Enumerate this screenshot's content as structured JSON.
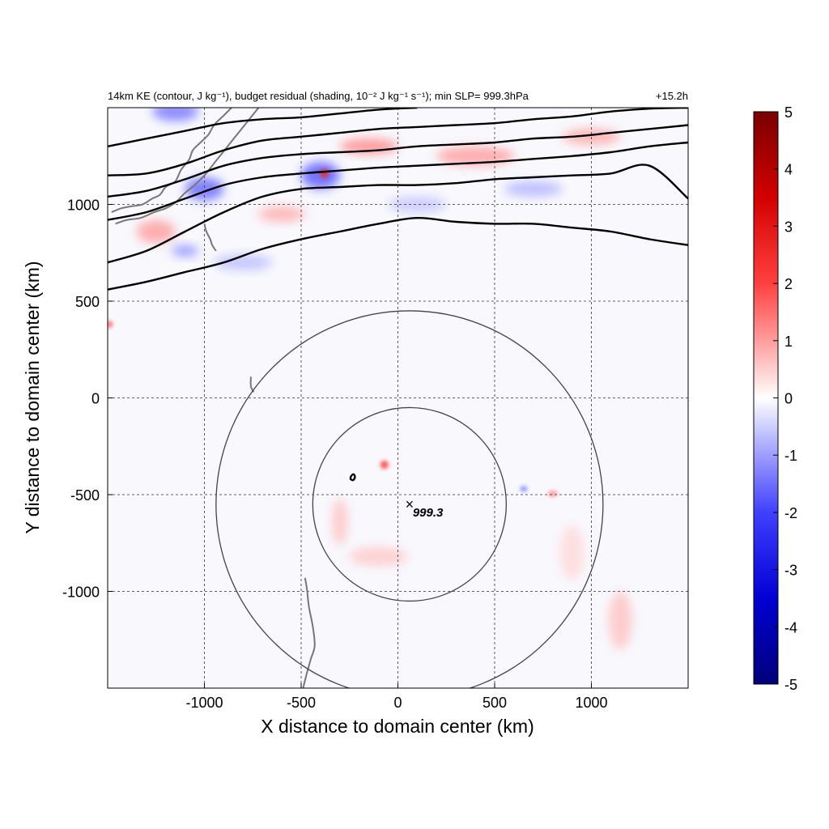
{
  "chart_data": {
    "type": "heatmap",
    "title_left": "14km KE (contour, J kg⁻¹), budget residual (shading, 10⁻² J kg⁻¹ s⁻¹); min SLP= 999.3hPa",
    "title_right": "+15.2h",
    "xlabel": "X distance to domain center (km)",
    "ylabel": "Y distance to domain center (km)",
    "xlim": [
      -1500,
      1500
    ],
    "ylim": [
      -1500,
      1500
    ],
    "x_ticks": [
      -1000,
      -500,
      0,
      500,
      1000
    ],
    "y_ticks": [
      -1000,
      -500,
      0,
      500,
      1000
    ],
    "x_tick_labels": [
      "-1000",
      "-500",
      "0",
      "500",
      "1000"
    ],
    "y_tick_labels": [
      "-1000",
      "-500",
      "0",
      "500",
      "1000"
    ],
    "grid": true,
    "colorbar": {
      "min": -5,
      "max": 5,
      "ticks": [
        5,
        4,
        3,
        2,
        1,
        0,
        -1,
        -2,
        -3,
        -4,
        -5
      ],
      "labels": [
        "5",
        "4",
        "3",
        "2",
        "1",
        "0",
        "-1",
        "-2",
        "-3",
        "-4",
        "-5"
      ],
      "colormap": "seismic",
      "colors": {
        "high": "#7a0000",
        "mid": "#ffffff",
        "low": "#00007a"
      }
    },
    "storm_center": {
      "x": 60,
      "y": -550,
      "label": "999.3",
      "marker": "×"
    },
    "range_circles": [
      {
        "center_x": 60,
        "center_y": -550,
        "radius_km": 500
      },
      {
        "center_x": 60,
        "center_y": -550,
        "radius_km": 1000
      }
    ],
    "ke_contours": [
      {
        "points": [
          [
            -1500,
            1300
          ],
          [
            -1300,
            1340
          ],
          [
            -1100,
            1380
          ],
          [
            -900,
            1420
          ],
          [
            -700,
            1440
          ],
          [
            -500,
            1450
          ],
          [
            -300,
            1470
          ],
          [
            -100,
            1490
          ],
          [
            100,
            1500
          ]
        ]
      },
      {
        "points": [
          [
            -1500,
            1150
          ],
          [
            -1300,
            1160
          ],
          [
            -1100,
            1210
          ],
          [
            -900,
            1280
          ],
          [
            -700,
            1330
          ],
          [
            -500,
            1350
          ],
          [
            -300,
            1370
          ],
          [
            -100,
            1390
          ],
          [
            100,
            1400
          ],
          [
            300,
            1410
          ],
          [
            500,
            1420
          ],
          [
            700,
            1440
          ],
          [
            900,
            1455
          ],
          [
            1100,
            1480
          ],
          [
            1300,
            1495
          ],
          [
            1500,
            1500
          ]
        ]
      },
      {
        "points": [
          [
            -1500,
            1040
          ],
          [
            -1300,
            1070
          ],
          [
            -1100,
            1130
          ],
          [
            -900,
            1200
          ],
          [
            -700,
            1240
          ],
          [
            -500,
            1260
          ],
          [
            -300,
            1270
          ],
          [
            -100,
            1280
          ],
          [
            100,
            1300
          ],
          [
            300,
            1310
          ],
          [
            500,
            1320
          ],
          [
            700,
            1340
          ],
          [
            900,
            1350
          ],
          [
            1100,
            1370
          ],
          [
            1300,
            1390
          ],
          [
            1500,
            1410
          ]
        ]
      },
      {
        "points": [
          [
            -1500,
            920
          ],
          [
            -1300,
            960
          ],
          [
            -1100,
            1030
          ],
          [
            -900,
            1100
          ],
          [
            -700,
            1140
          ],
          [
            -500,
            1160
          ],
          [
            -300,
            1175
          ],
          [
            -100,
            1190
          ],
          [
            100,
            1200
          ],
          [
            300,
            1210
          ],
          [
            500,
            1220
          ],
          [
            700,
            1235
          ],
          [
            900,
            1250
          ],
          [
            1100,
            1270
          ],
          [
            1300,
            1300
          ],
          [
            1500,
            1320
          ]
        ]
      },
      {
        "points": [
          [
            -1500,
            700
          ],
          [
            -1300,
            760
          ],
          [
            -1100,
            860
          ],
          [
            -900,
            960
          ],
          [
            -700,
            1040
          ],
          [
            -500,
            1080
          ],
          [
            -300,
            1090
          ],
          [
            -100,
            1100
          ],
          [
            100,
            1100
          ],
          [
            300,
            1110
          ],
          [
            500,
            1130
          ],
          [
            700,
            1140
          ],
          [
            900,
            1150
          ],
          [
            1100,
            1160
          ],
          [
            1300,
            1200
          ],
          [
            1500,
            1030
          ]
        ]
      },
      {
        "points": [
          [
            -1500,
            560
          ],
          [
            -1300,
            600
          ],
          [
            -1100,
            650
          ],
          [
            -900,
            700
          ],
          [
            -700,
            770
          ],
          [
            -500,
            820
          ],
          [
            -300,
            860
          ],
          [
            -100,
            900
          ],
          [
            100,
            930
          ],
          [
            300,
            910
          ],
          [
            500,
            900
          ],
          [
            700,
            900
          ],
          [
            900,
            880
          ],
          [
            1100,
            860
          ],
          [
            1300,
            820
          ],
          [
            1500,
            790
          ]
        ]
      },
      {
        "points": [
          [
            -240,
            -400
          ],
          [
            -228,
            -395
          ],
          [
            -222,
            -410
          ],
          [
            -232,
            -425
          ],
          [
            -245,
            -418
          ],
          [
            -240,
            -400
          ]
        ]
      }
    ],
    "shading_features": [
      {
        "x": -70,
        "y": -345,
        "rx": 22,
        "ry": 22,
        "value": 2.5
      },
      {
        "x": 800,
        "y": -495,
        "rx": 25,
        "ry": 18,
        "value": 1.4
      },
      {
        "x": -300,
        "y": -640,
        "rx": 40,
        "ry": 120,
        "value": 0.8
      },
      {
        "x": -100,
        "y": -820,
        "rx": 150,
        "ry": 50,
        "value": 0.7
      },
      {
        "x": 1150,
        "y": -1150,
        "rx": 60,
        "ry": 150,
        "value": 0.8
      },
      {
        "x": 900,
        "y": -800,
        "rx": 60,
        "ry": 140,
        "value": 0.5
      },
      {
        "x": 650,
        "y": -470,
        "rx": 20,
        "ry": 15,
        "value": -1.5
      },
      {
        "x": -1150,
        "y": 1480,
        "rx": 120,
        "ry": 50,
        "value": -1.8
      },
      {
        "x": -1000,
        "y": 1080,
        "rx": 100,
        "ry": 60,
        "value": -2.0
      },
      {
        "x": -400,
        "y": 1150,
        "rx": 100,
        "ry": 70,
        "value": -2.2
      },
      {
        "x": -380,
        "y": 1160,
        "rx": 25,
        "ry": 25,
        "value": 3.0
      },
      {
        "x": -150,
        "y": 1300,
        "rx": 150,
        "ry": 40,
        "value": 1.6
      },
      {
        "x": 400,
        "y": 1250,
        "rx": 200,
        "ry": 50,
        "value": 1.3
      },
      {
        "x": 700,
        "y": 1080,
        "rx": 150,
        "ry": 40,
        "value": -1.0
      },
      {
        "x": 1000,
        "y": 1350,
        "rx": 150,
        "ry": 40,
        "value": 1.2
      },
      {
        "x": -1250,
        "y": 860,
        "rx": 100,
        "ry": 60,
        "value": 1.3
      },
      {
        "x": -800,
        "y": 700,
        "rx": 150,
        "ry": 40,
        "value": -0.9
      },
      {
        "x": -1100,
        "y": 760,
        "rx": 70,
        "ry": 30,
        "value": -1.5
      },
      {
        "x": -1490,
        "y": 380,
        "rx": 12,
        "ry": 20,
        "value": 2.0
      },
      {
        "x": -600,
        "y": 950,
        "rx": 120,
        "ry": 40,
        "value": 1.1
      },
      {
        "x": 100,
        "y": 1000,
        "rx": 150,
        "ry": 40,
        "value": -0.8
      }
    ],
    "coastlines": [
      {
        "points": [
          [
            -1480,
            960
          ],
          [
            -1430,
            980
          ],
          [
            -1380,
            990
          ],
          [
            -1320,
            1000
          ],
          [
            -1270,
            1030
          ],
          [
            -1230,
            1050
          ],
          [
            -1200,
            1090
          ],
          [
            -1150,
            1120
          ],
          [
            -1120,
            1180
          ],
          [
            -1080,
            1230
          ],
          [
            -1060,
            1280
          ],
          [
            -1020,
            1320
          ],
          [
            -980,
            1360
          ],
          [
            -950,
            1410
          ],
          [
            -900,
            1460
          ],
          [
            -860,
            1500
          ]
        ]
      },
      {
        "points": [
          [
            -1460,
            900
          ],
          [
            -1400,
            920
          ],
          [
            -1330,
            930
          ],
          [
            -1260,
            960
          ],
          [
            -1200,
            980
          ],
          [
            -1150,
            1010
          ],
          [
            -1100,
            1060
          ],
          [
            -1050,
            1100
          ],
          [
            -1000,
            1150
          ],
          [
            -960,
            1200
          ],
          [
            -920,
            1250
          ],
          [
            -880,
            1300
          ],
          [
            -840,
            1350
          ],
          [
            -800,
            1400
          ],
          [
            -760,
            1450
          ],
          [
            -720,
            1500
          ]
        ]
      },
      {
        "points": [
          [
            -1000,
            900
          ],
          [
            -990,
            860
          ],
          [
            -970,
            820
          ],
          [
            -960,
            790
          ],
          [
            -940,
            760
          ]
        ]
      },
      {
        "points": [
          [
            -760,
            110
          ],
          [
            -760,
            60
          ],
          [
            -745,
            30
          ]
        ]
      },
      {
        "points": [
          [
            -480,
            -930
          ],
          [
            -470,
            -990
          ],
          [
            -460,
            -1080
          ],
          [
            -440,
            -1180
          ],
          [
            -430,
            -1280
          ],
          [
            -450,
            -1350
          ],
          [
            -470,
            -1420
          ],
          [
            -490,
            -1500
          ]
        ]
      }
    ]
  }
}
